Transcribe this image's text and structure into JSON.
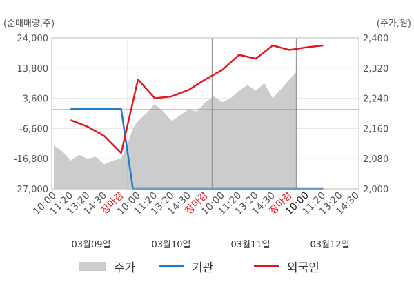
{
  "chart_data": {
    "type": "line",
    "left_axis_unit": "(순매매량,주)",
    "right_axis_unit": "(주가,원)",
    "left_ticks": [
      "24,000",
      "13,800",
      "3,600",
      "-6,600",
      "-16,800",
      "-27,000"
    ],
    "left_ylim": [
      -27000,
      24000
    ],
    "right_ticks": [
      "2,400",
      "2,320",
      "2,240",
      "2,160",
      "2,080",
      "2,000"
    ],
    "right_ylim": [
      2000,
      2400
    ],
    "x_ticks": [
      {
        "label": "10:00",
        "style": "normal"
      },
      {
        "label": "11:20",
        "style": "normal"
      },
      {
        "label": "13:20",
        "style": "normal"
      },
      {
        "label": "14:30",
        "style": "normal"
      },
      {
        "label": "장마감",
        "style": "close"
      },
      {
        "label": "10:00",
        "style": "normal"
      },
      {
        "label": "11:20",
        "style": "normal"
      },
      {
        "label": "13:20",
        "style": "normal"
      },
      {
        "label": "14:30",
        "style": "normal"
      },
      {
        "label": "장마감",
        "style": "close"
      },
      {
        "label": "10:00",
        "style": "normal"
      },
      {
        "label": "11:20",
        "style": "normal"
      },
      {
        "label": "13:20",
        "style": "normal"
      },
      {
        "label": "14:30",
        "style": "normal"
      },
      {
        "label": "장마감",
        "style": "close"
      },
      {
        "label": "10:00",
        "style": "dark"
      },
      {
        "label": "11:20",
        "style": "normal"
      },
      {
        "label": "13:20",
        "style": "normal"
      },
      {
        "label": "14:30",
        "style": "normal"
      }
    ],
    "dates": [
      "03월09일",
      "03월10일",
      "03월11일",
      "03월12일"
    ],
    "day_separators_after_slot": [
      4,
      9,
      14
    ],
    "reference_line_value": 2210,
    "series": [
      {
        "name": "주가",
        "axis": "right",
        "color": "#cccccc",
        "x": [
          0,
          0.5,
          1,
          1.5,
          2,
          2.5,
          3,
          3.5,
          4,
          4.3,
          4.7,
          5,
          5.5,
          6,
          6.5,
          7,
          7.5,
          8,
          8.5,
          9,
          9.5,
          10,
          10.5,
          11,
          11.5,
          12,
          12.5,
          13,
          13.5,
          14,
          14.4
        ],
        "values": [
          2115,
          2100,
          2075,
          2090,
          2080,
          2085,
          2065,
          2075,
          2080,
          2110,
          2160,
          2180,
          2200,
          2225,
          2205,
          2180,
          2195,
          2210,
          2205,
          2230,
          2245,
          2230,
          2240,
          2260,
          2275,
          2260,
          2280,
          2240,
          2265,
          2290,
          2310
        ]
      },
      {
        "name": "기관",
        "axis": "left",
        "color": "#1a7cd3",
        "x": [
          1,
          2,
          3,
          4,
          4.7,
          5,
          6,
          7,
          8,
          9,
          10,
          11,
          12,
          13,
          14,
          15,
          16
        ],
        "values": [
          0,
          0,
          0,
          0,
          -27000,
          -27000,
          -27000,
          -27000,
          -27000,
          -27000,
          -27000,
          -27000,
          -27000,
          -27000,
          -27000,
          -27000,
          -27000
        ]
      },
      {
        "name": "외국인",
        "axis": "right",
        "color": "#e8141e",
        "x": [
          1,
          2,
          3,
          4,
          5,
          6,
          7,
          8,
          9,
          10,
          11,
          12,
          13,
          14,
          15,
          16
        ],
        "values": [
          2182,
          2165,
          2140,
          2095,
          2290,
          2240,
          2245,
          2262,
          2290,
          2315,
          2355,
          2345,
          2380,
          2368,
          2375,
          2380
        ]
      }
    ]
  },
  "legend": [
    {
      "label": "주가",
      "kind": "area",
      "color": "#cccccc"
    },
    {
      "label": "기관",
      "kind": "line",
      "color": "#1a7cd3"
    },
    {
      "label": "외국인",
      "kind": "line",
      "color": "#e8141e"
    }
  ]
}
